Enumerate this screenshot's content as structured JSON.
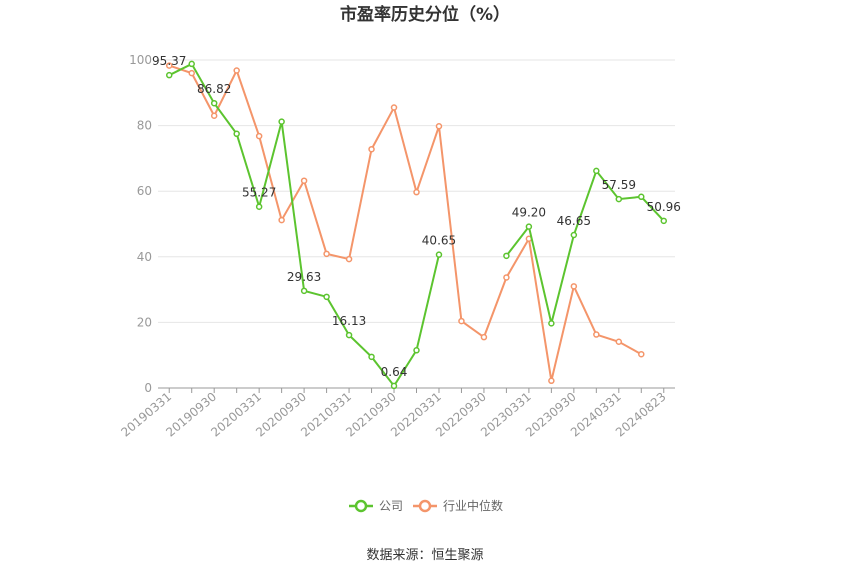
{
  "chart_data": {
    "type": "line",
    "title": "市盈率历史分位（%）",
    "ylim": [
      0,
      100
    ],
    "y_ticks": [
      0,
      20,
      40,
      60,
      80,
      100
    ],
    "x": [
      "20190331",
      "20190630",
      "20190930",
      "20191231",
      "20200331",
      "20200630",
      "20200930",
      "20201231",
      "20210331",
      "20210630",
      "20210930",
      "20211231",
      "20220331",
      "20220630",
      "20220930",
      "20221231",
      "20230331",
      "20230630",
      "20230930",
      "20231231",
      "20240331",
      "20240630",
      "20240823"
    ],
    "x_tick_labels": [
      "20190331",
      "20190930",
      "20200331",
      "20200930",
      "20210331",
      "20210930",
      "20220331",
      "20220930",
      "20230331",
      "20230930",
      "20240331",
      "20240823"
    ],
    "grid": true,
    "legend_position": "bottom",
    "series": [
      {
        "name": "公司",
        "color": "#5cc42f",
        "values": [
          95.37,
          98.8,
          86.82,
          77.5,
          55.27,
          81.2,
          29.63,
          27.8,
          16.13,
          9.5,
          0.64,
          11.5,
          40.65,
          null,
          null,
          40.3,
          49.2,
          19.7,
          46.65,
          66.2,
          57.59,
          58.3,
          50.96
        ],
        "labels": {
          "0": "95.37",
          "2": "86.82",
          "4": "55.27",
          "6": "29.63",
          "8": "16.13",
          "10": "0.64",
          "12": "40.65",
          "16": "49.20",
          "18": "46.65",
          "20": "57.59",
          "22": "50.96"
        }
      },
      {
        "name": "行业中位数",
        "color": "#f4956a",
        "values": [
          98.3,
          96.0,
          83.0,
          96.8,
          76.8,
          51.2,
          63.2,
          40.9,
          39.3,
          72.8,
          85.5,
          59.7,
          79.8,
          20.4,
          15.5,
          33.7,
          45.5,
          2.2,
          31.0,
          16.3,
          14.1,
          10.3,
          null
        ]
      }
    ]
  },
  "legend": {
    "company": "公司",
    "industry": "行业中位数"
  },
  "source_text": "数据来源：恒生聚源"
}
